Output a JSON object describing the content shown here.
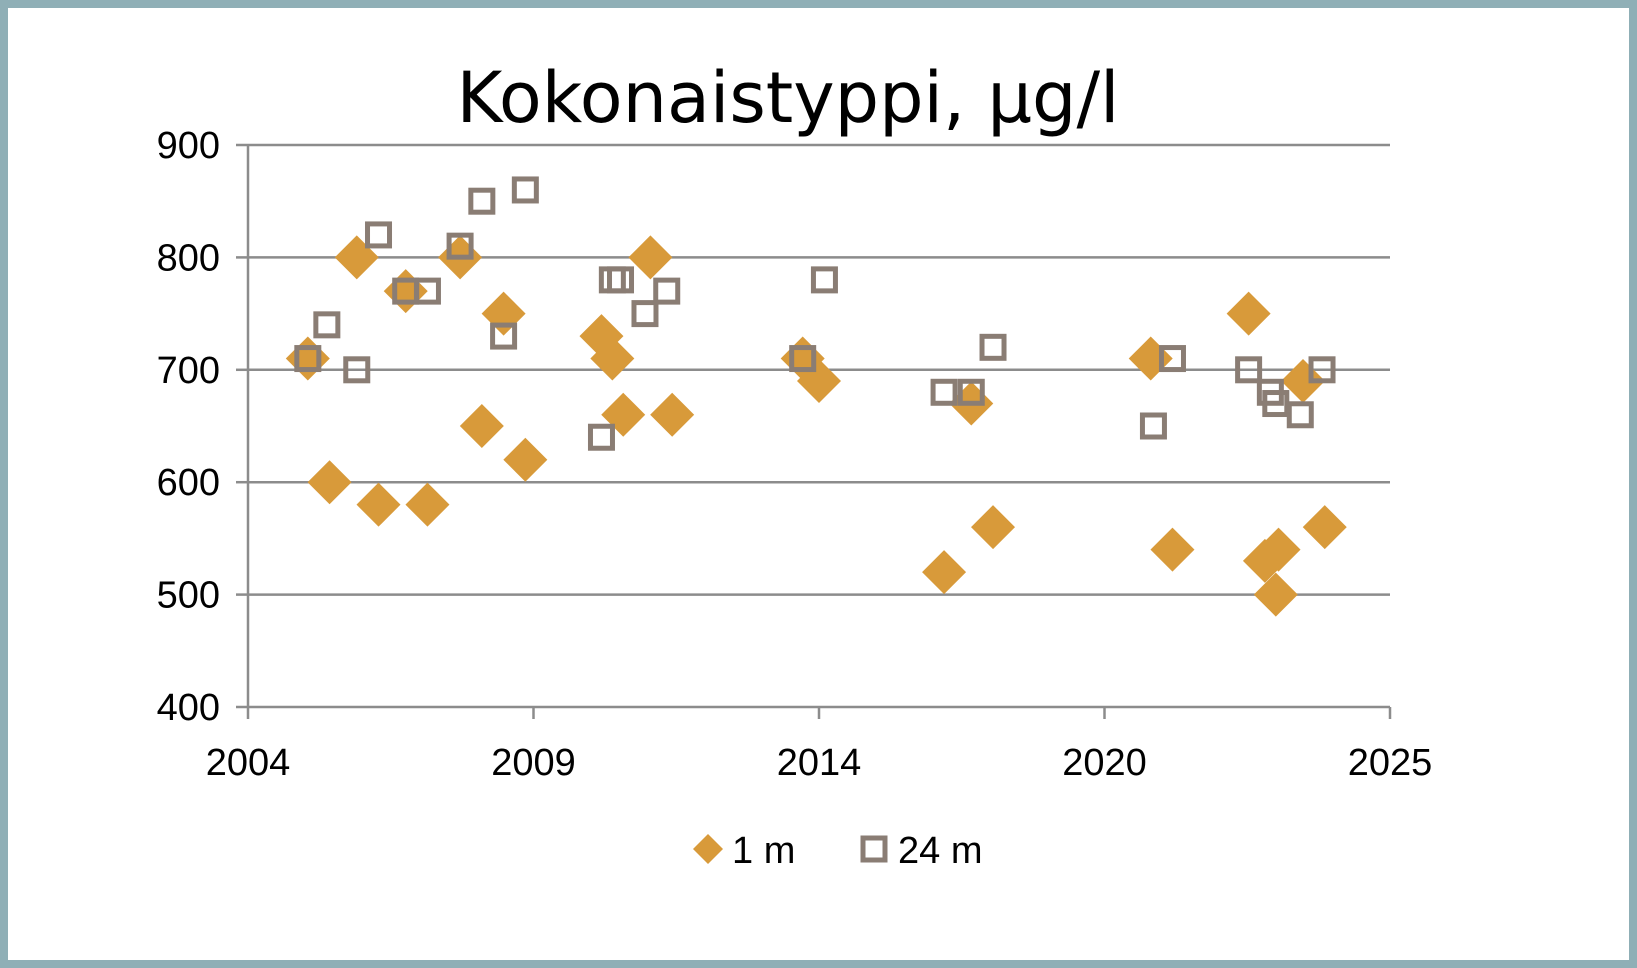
{
  "chart_data": {
    "type": "scatter",
    "title": "Kokonaistyppi, µg/l",
    "xlabel": "",
    "ylabel": "",
    "xlim": [
      2004,
      2025
    ],
    "ylim": [
      400,
      900
    ],
    "x_ticks": [
      "2004",
      "2009",
      "2014",
      "2020",
      "2025"
    ],
    "y_ticks": [
      "400",
      "500",
      "600",
      "700",
      "800",
      "900"
    ],
    "grid": "horizontal",
    "legend": "bottom",
    "series": [
      {
        "name": "1 m",
        "marker": "diamond",
        "color": "#d89a3a",
        "points": [
          [
            2005.1,
            710
          ],
          [
            2005.5,
            600
          ],
          [
            2006.0,
            800
          ],
          [
            2006.4,
            580
          ],
          [
            2006.9,
            770
          ],
          [
            2007.3,
            580
          ],
          [
            2007.9,
            800
          ],
          [
            2008.3,
            650
          ],
          [
            2008.7,
            750
          ],
          [
            2009.1,
            620
          ],
          [
            2010.5,
            730
          ],
          [
            2010.7,
            710
          ],
          [
            2010.9,
            660
          ],
          [
            2011.4,
            800
          ],
          [
            2011.8,
            660
          ],
          [
            2014.2,
            710
          ],
          [
            2014.5,
            690
          ],
          [
            2016.8,
            520
          ],
          [
            2017.3,
            670
          ],
          [
            2017.7,
            560
          ],
          [
            2020.6,
            710
          ],
          [
            2021.0,
            540
          ],
          [
            2022.4,
            750
          ],
          [
            2022.7,
            530
          ],
          [
            2022.9,
            500
          ],
          [
            2022.95,
            540
          ],
          [
            2023.4,
            690
          ],
          [
            2023.8,
            560
          ]
        ]
      },
      {
        "name": "24 m",
        "marker": "square-open",
        "color": "#8a7d74",
        "points": [
          [
            2005.1,
            710
          ],
          [
            2005.45,
            740
          ],
          [
            2006.0,
            700
          ],
          [
            2006.4,
            820
          ],
          [
            2006.9,
            770
          ],
          [
            2007.3,
            770
          ],
          [
            2007.9,
            810
          ],
          [
            2008.3,
            850
          ],
          [
            2008.7,
            730
          ],
          [
            2009.1,
            860
          ],
          [
            2010.5,
            640
          ],
          [
            2010.7,
            780
          ],
          [
            2010.85,
            780
          ],
          [
            2011.3,
            750
          ],
          [
            2011.7,
            770
          ],
          [
            2014.2,
            710
          ],
          [
            2014.6,
            780
          ],
          [
            2016.8,
            680
          ],
          [
            2017.3,
            680
          ],
          [
            2017.7,
            720
          ],
          [
            2020.65,
            650
          ],
          [
            2021.0,
            710
          ],
          [
            2022.4,
            700
          ],
          [
            2022.8,
            680
          ],
          [
            2022.9,
            670
          ],
          [
            2023.35,
            660
          ],
          [
            2023.75,
            700
          ]
        ]
      }
    ]
  }
}
